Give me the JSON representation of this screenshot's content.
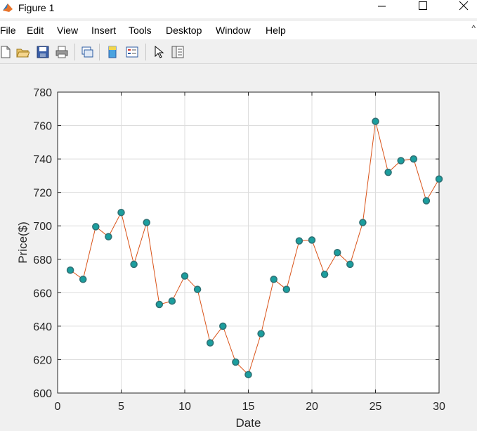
{
  "window": {
    "title": "Figure 1"
  },
  "menu": [
    "File",
    "Edit",
    "View",
    "Insert",
    "Tools",
    "Desktop",
    "Window",
    "Help"
  ],
  "menu_extra": "^",
  "colors": {
    "line": "#d95319",
    "marker_fill": "#1b9e9e",
    "marker_edge": "#2f6f73",
    "grid": "#dddddd",
    "axes_bg": "#ffffff",
    "figure_bg": "#f0f0f0"
  },
  "chart_data": {
    "type": "line",
    "title": "",
    "xlabel": "Date",
    "ylabel": "Price($)",
    "xlim": [
      0,
      30
    ],
    "ylim": [
      600,
      780
    ],
    "xticks": [
      0,
      5,
      10,
      15,
      20,
      25,
      30
    ],
    "yticks": [
      600,
      620,
      640,
      660,
      680,
      700,
      720,
      740,
      760,
      780
    ],
    "grid": true,
    "x": [
      1,
      2,
      3,
      4,
      5,
      6,
      7,
      8,
      9,
      10,
      11,
      12,
      13,
      14,
      15,
      16,
      17,
      18,
      19,
      20,
      21,
      22,
      23,
      24,
      25,
      26,
      27,
      28,
      29,
      30
    ],
    "y": [
      673.5,
      668,
      699.5,
      693.5,
      708,
      677,
      702,
      653,
      655,
      670,
      662,
      630,
      640,
      618.5,
      611,
      635.5,
      668,
      662,
      691,
      691.5,
      671,
      684,
      677,
      702,
      762.5,
      732,
      739,
      740,
      715,
      728
    ]
  }
}
